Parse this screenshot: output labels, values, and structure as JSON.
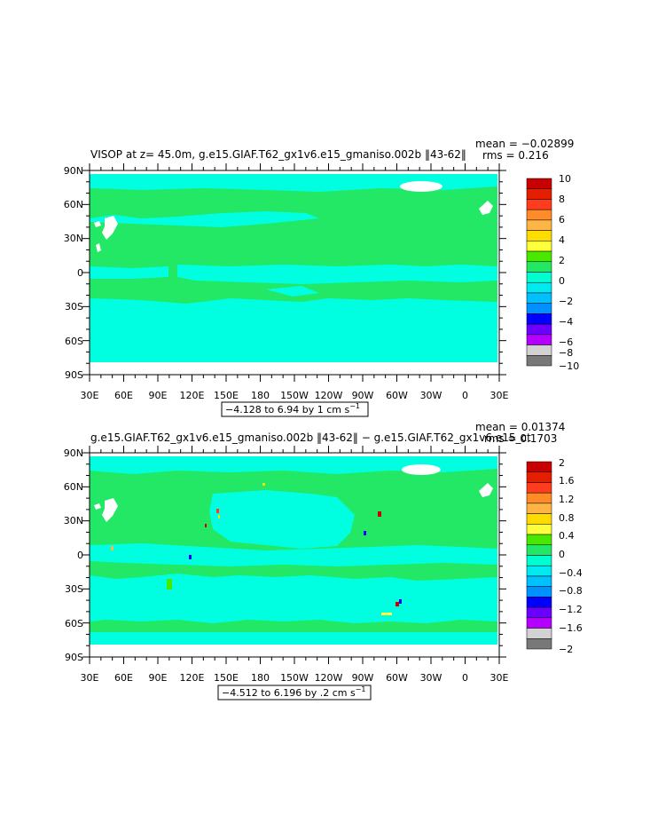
{
  "chart_data": [
    {
      "type": "heatmap",
      "title": "VISOP at z=  45.0m, g.e15.GIAF.T62_gx1v6.e15_gmaniso.002b ‖43-62‖",
      "stats": {
        "mean": "mean = −0.02899",
        "rms": "rms = 0.216"
      },
      "x_ticks": [
        "30E",
        "60E",
        "90E",
        "120E",
        "150E",
        "180",
        "150W",
        "120W",
        "90W",
        "60W",
        "30W",
        "0",
        "30E"
      ],
      "y_ticks": [
        "90N",
        "60N",
        "30N",
        "0",
        "30S",
        "60S",
        "90S"
      ],
      "range_label": "−4.128 to 6.94 by 1 cm s",
      "range_unit_exp": "−1",
      "colorbar": {
        "labels": [
          "10",
          "8",
          "6",
          "4",
          "2",
          "0",
          "−2",
          "−4",
          "−6",
          "−8",
          "−10"
        ],
        "colors": [
          "#c80000",
          "#e61e00",
          "#ff3c1e",
          "#ff8c28",
          "#ffb446",
          "#ffdc00",
          "#ffff3c",
          "#48e800",
          "#22e866",
          "#00ffd0",
          "#00eaf0",
          "#00c0ff",
          "#0090ff",
          "#0000ff",
          "#6c00ff",
          "#b400ff",
          "#d2d2d2",
          "#787878"
        ]
      },
      "fields": {
        "ocean_main": "#22e866",
        "ocean_alt": "#00ffe0",
        "land": "#ffffff"
      }
    },
    {
      "type": "heatmap",
      "title": "g.e15.GIAF.T62_gx1v6.e15_gmaniso.002b ‖43-62‖ − g.e15.GIAF.T62_gx1v6.e15_ct",
      "stats": {
        "mean": "mean = 0.01374",
        "rms": "rms = 0.1703"
      },
      "x_ticks": [
        "30E",
        "60E",
        "90E",
        "120E",
        "150E",
        "180",
        "150W",
        "120W",
        "90W",
        "60W",
        "30W",
        "0",
        "30E"
      ],
      "y_ticks": [
        "90N",
        "60N",
        "30N",
        "0",
        "30S",
        "60S",
        "90S"
      ],
      "range_label": "−4.512 to 6.196 by .2 cm s",
      "range_unit_exp": "−1",
      "colorbar": {
        "labels": [
          "2",
          "1.6",
          "1.2",
          "0.8",
          "0.4",
          "0",
          "−0.4",
          "−0.8",
          "−1.2",
          "−1.6",
          "−2"
        ],
        "colors": [
          "#c80000",
          "#e61e00",
          "#ff3c1e",
          "#ff8c28",
          "#ffb446",
          "#ffdc00",
          "#ffff3c",
          "#48e800",
          "#22e866",
          "#00ffd0",
          "#00eaf0",
          "#00c0ff",
          "#0090ff",
          "#0000ff",
          "#6c00ff",
          "#b400ff",
          "#d2d2d2",
          "#787878"
        ]
      },
      "fields": {
        "ocean_main": "#00ffe0",
        "ocean_alt": "#22e866",
        "land": "#ffffff"
      }
    }
  ]
}
